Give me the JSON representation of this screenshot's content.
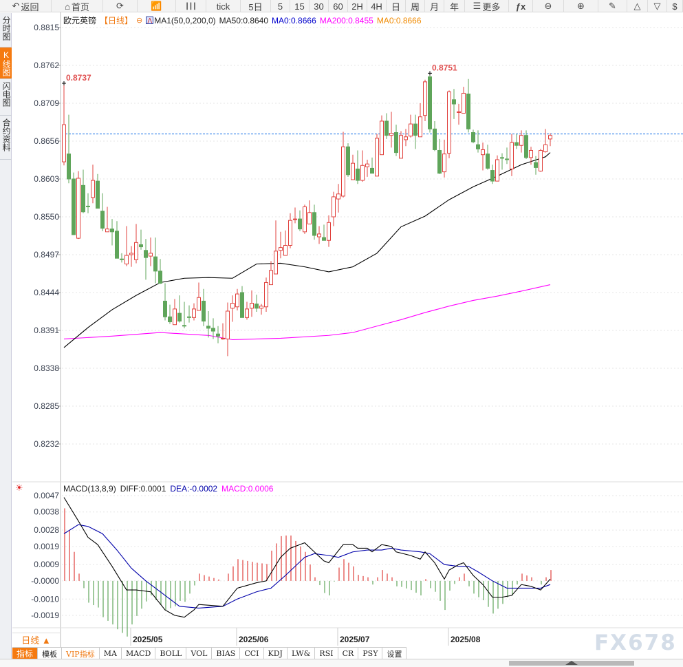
{
  "toolbar": {
    "items": [
      {
        "label": "返回",
        "icon": "back-arrow-icon"
      },
      {
        "label": "首页",
        "icon": "home-icon"
      },
      {
        "label": "",
        "icon": "refresh-icon"
      },
      {
        "label": "",
        "icon": "indicator-chart-icon"
      },
      {
        "label": "",
        "icon": "candlestick-icon"
      },
      {
        "label": "tick"
      },
      {
        "label": "5日"
      },
      {
        "label": "5"
      },
      {
        "label": "15"
      },
      {
        "label": "30"
      },
      {
        "label": "60"
      },
      {
        "label": "2H"
      },
      {
        "label": "4H"
      },
      {
        "label": "日"
      },
      {
        "label": "周"
      },
      {
        "label": "月"
      },
      {
        "label": "年"
      },
      {
        "label": "更多",
        "icon": "menu-icon"
      },
      {
        "label": "",
        "icon": "fx-icon"
      },
      {
        "label": "",
        "icon": "zoom-out-icon"
      },
      {
        "label": "",
        "icon": "zoom-in-icon"
      },
      {
        "label": "",
        "icon": "pen-icon"
      },
      {
        "label": "",
        "icon": "triangle-up-icon"
      },
      {
        "label": "",
        "icon": "triangle-down-icon"
      },
      {
        "label": "",
        "icon": "dollar-icon"
      }
    ]
  },
  "sidebar": {
    "items": [
      {
        "label": "分时图"
      },
      {
        "label": "K线图",
        "active": true
      },
      {
        "label": "闪电图"
      },
      {
        "label": "合约资料"
      }
    ]
  },
  "legend": {
    "symbol": "欧元英镑",
    "period": "【日线】",
    "ma_name": "MA1(50,0,200,0)",
    "ma50": "MA50:0.8640",
    "ma0a": "MA0:0.8666",
    "ma200": "MA200:0.8455",
    "ma0b": "MA0:0.8666"
  },
  "macd_legend": {
    "name": "MACD(13,8,9)",
    "diff": "DIFF:0.0001",
    "dea": "DEA:-0.0002",
    "macd": "MACD:0.0006"
  },
  "period_box": "日线 ▲",
  "tabs": [
    {
      "label": "指标",
      "active": true
    },
    {
      "label": "模板"
    },
    {
      "label": "VIP指标",
      "vip": true
    },
    {
      "label": "MA"
    },
    {
      "label": "MACD"
    },
    {
      "label": "BOLL"
    },
    {
      "label": "VOL"
    },
    {
      "label": "BIAS"
    },
    {
      "label": "CCI"
    },
    {
      "label": "KDJ"
    },
    {
      "label": "LW&"
    },
    {
      "label": "RSI"
    },
    {
      "label": "CR"
    },
    {
      "label": "PSY"
    },
    {
      "label": "设置"
    }
  ],
  "watermark": "FX678",
  "colors": {
    "up": "#e0403c",
    "down": "#5fa55a",
    "ma50": "#000000",
    "ma200": "#ff00ff",
    "dea": "#0000aa",
    "diff": "#000000",
    "last_price_line": "#1a73e8",
    "accent": "#f57a10"
  },
  "chart_data": [
    {
      "type": "candlestick",
      "ylim": [
        0.8232,
        0.8815
      ],
      "yticks": [
        "0.8815",
        "0.8762",
        "0.8709",
        "0.8656",
        "0.8603",
        "0.8550",
        "0.8497",
        "0.8444",
        "0.8391",
        "0.8338",
        "0.8285",
        "0.8232"
      ],
      "month_labels": [
        {
          "label": "2025/05",
          "index": 14
        },
        {
          "label": "2025/06",
          "index": 36
        },
        {
          "label": "2025/07",
          "index": 57
        },
        {
          "label": "2025/08",
          "index": 80
        }
      ],
      "last_price": 0.8666,
      "annotations": [
        {
          "label": "0.8737",
          "index": 0,
          "value": 0.8737
        },
        {
          "label": "0.8751",
          "index": 76,
          "value": 0.8751
        }
      ],
      "ohlc": [
        [
          0.8627,
          0.8737,
          0.8622,
          0.8679
        ],
        [
          0.8638,
          0.8693,
          0.8597,
          0.8603
        ],
        [
          0.8603,
          0.8612,
          0.8525,
          0.8525
        ],
        [
          0.852,
          0.8614,
          0.8519,
          0.8604
        ],
        [
          0.8594,
          0.8616,
          0.8555,
          0.8557
        ],
        [
          0.8565,
          0.8583,
          0.8555,
          0.8564
        ],
        [
          0.8577,
          0.8623,
          0.8569,
          0.8601
        ],
        [
          0.86,
          0.861,
          0.8562,
          0.8562
        ],
        [
          0.8558,
          0.8583,
          0.853,
          0.8534
        ],
        [
          0.8529,
          0.8564,
          0.8529,
          0.8533
        ],
        [
          0.8533,
          0.8547,
          0.851,
          0.8529
        ],
        [
          0.853,
          0.8544,
          0.8492,
          0.8492
        ],
        [
          0.8491,
          0.8499,
          0.8486,
          0.849
        ],
        [
          0.8484,
          0.8537,
          0.8481,
          0.8496
        ],
        [
          0.8497,
          0.8509,
          0.848,
          0.8499
        ],
        [
          0.849,
          0.854,
          0.8485,
          0.8514
        ],
        [
          0.8511,
          0.8532,
          0.8504,
          0.8508
        ],
        [
          0.8503,
          0.8519,
          0.8462,
          0.8493
        ],
        [
          0.8495,
          0.8521,
          0.8481,
          0.8499
        ],
        [
          0.8494,
          0.8521,
          0.8457,
          0.8474
        ],
        [
          0.8474,
          0.8491,
          0.8456,
          0.8457
        ],
        [
          0.8432,
          0.8457,
          0.8405,
          0.841
        ],
        [
          0.841,
          0.8427,
          0.84,
          0.8403
        ],
        [
          0.8399,
          0.8435,
          0.8399,
          0.8421
        ],
        [
          0.8415,
          0.844,
          0.8402,
          0.8404
        ],
        [
          0.8398,
          0.8431,
          0.8394,
          0.8397
        ],
        [
          0.841,
          0.8426,
          0.8402,
          0.8409
        ],
        [
          0.8409,
          0.8429,
          0.8405,
          0.8421
        ],
        [
          0.8419,
          0.8458,
          0.8419,
          0.8437
        ],
        [
          0.8432,
          0.8449,
          0.8397,
          0.8404
        ],
        [
          0.8397,
          0.8418,
          0.8381,
          0.8394
        ],
        [
          0.8394,
          0.8408,
          0.8379,
          0.839
        ],
        [
          0.8386,
          0.8397,
          0.8373,
          0.8383
        ],
        [
          0.8379,
          0.8401,
          0.8378,
          0.838
        ],
        [
          0.8379,
          0.843,
          0.8355,
          0.8418
        ],
        [
          0.8422,
          0.844,
          0.8403,
          0.8429
        ],
        [
          0.8424,
          0.8449,
          0.8419,
          0.8442
        ],
        [
          0.8444,
          0.8453,
          0.8409,
          0.8409
        ],
        [
          0.8409,
          0.8431,
          0.8406,
          0.8421
        ],
        [
          0.8422,
          0.8447,
          0.841,
          0.8429
        ],
        [
          0.8428,
          0.8441,
          0.8417,
          0.8422
        ],
        [
          0.8422,
          0.8428,
          0.8413,
          0.8425
        ],
        [
          0.8424,
          0.8465,
          0.8417,
          0.8458
        ],
        [
          0.8455,
          0.8488,
          0.8455,
          0.8475
        ],
        [
          0.847,
          0.8545,
          0.847,
          0.8502
        ],
        [
          0.8503,
          0.8529,
          0.8492,
          0.8507
        ],
        [
          0.8496,
          0.8531,
          0.8496,
          0.851
        ],
        [
          0.851,
          0.8555,
          0.8506,
          0.8545
        ],
        [
          0.8546,
          0.8563,
          0.8541,
          0.8547
        ],
        [
          0.8547,
          0.8559,
          0.853,
          0.8533
        ],
        [
          0.8529,
          0.8567,
          0.8526,
          0.8564
        ],
        [
          0.854,
          0.8573,
          0.854,
          0.8556
        ],
        [
          0.8556,
          0.8567,
          0.8518,
          0.8524
        ],
        [
          0.8522,
          0.8537,
          0.8512,
          0.8526
        ],
        [
          0.8521,
          0.8539,
          0.8517,
          0.8517
        ],
        [
          0.8517,
          0.8552,
          0.8508,
          0.8542
        ],
        [
          0.855,
          0.8585,
          0.8537,
          0.8578
        ],
        [
          0.8575,
          0.8596,
          0.8556,
          0.8582
        ],
        [
          0.8579,
          0.8669,
          0.8577,
          0.8648
        ],
        [
          0.8648,
          0.8653,
          0.8606,
          0.8609
        ],
        [
          0.8602,
          0.8637,
          0.8602,
          0.8625
        ],
        [
          0.8617,
          0.8643,
          0.8596,
          0.8601
        ],
        [
          0.8601,
          0.8643,
          0.8599,
          0.8622
        ],
        [
          0.862,
          0.863,
          0.8606,
          0.8624
        ],
        [
          0.8618,
          0.8633,
          0.8611,
          0.8611
        ],
        [
          0.8607,
          0.8666,
          0.8607,
          0.866
        ],
        [
          0.8637,
          0.8692,
          0.8637,
          0.8684
        ],
        [
          0.8684,
          0.8695,
          0.8659,
          0.8664
        ],
        [
          0.8664,
          0.8697,
          0.8647,
          0.8667
        ],
        [
          0.8668,
          0.8679,
          0.8635,
          0.864
        ],
        [
          0.8632,
          0.867,
          0.8632,
          0.8664
        ],
        [
          0.8658,
          0.8673,
          0.8649,
          0.8662
        ],
        [
          0.8663,
          0.8693,
          0.8661,
          0.868
        ],
        [
          0.868,
          0.8693,
          0.8645,
          0.8664
        ],
        [
          0.8662,
          0.8709,
          0.8662,
          0.869
        ],
        [
          0.8692,
          0.8742,
          0.8684,
          0.8739
        ],
        [
          0.8746,
          0.8751,
          0.8668,
          0.8673
        ],
        [
          0.8673,
          0.8684,
          0.8642,
          0.8644
        ],
        [
          0.8643,
          0.8659,
          0.861,
          0.8611
        ],
        [
          0.8613,
          0.8658,
          0.8605,
          0.8638
        ],
        [
          0.8639,
          0.8727,
          0.8632,
          0.8725
        ],
        [
          0.8714,
          0.8729,
          0.8687,
          0.8708
        ],
        [
          0.8697,
          0.8708,
          0.8679,
          0.8697
        ],
        [
          0.8695,
          0.8732,
          0.8695,
          0.8723
        ],
        [
          0.8722,
          0.8743,
          0.8668,
          0.8673
        ],
        [
          0.8668,
          0.8672,
          0.8653,
          0.8655
        ],
        [
          0.8651,
          0.8671,
          0.864,
          0.8645
        ],
        [
          0.8637,
          0.8654,
          0.8615,
          0.8644
        ],
        [
          0.8638,
          0.8651,
          0.8616,
          0.8618
        ],
        [
          0.8615,
          0.8623,
          0.8596,
          0.86
        ],
        [
          0.86,
          0.8636,
          0.86,
          0.863
        ],
        [
          0.8633,
          0.8639,
          0.8616,
          0.8632
        ],
        [
          0.8631,
          0.8647,
          0.8624,
          0.863
        ],
        [
          0.8617,
          0.8666,
          0.8607,
          0.8654
        ],
        [
          0.8654,
          0.8666,
          0.8645,
          0.865
        ],
        [
          0.865,
          0.8671,
          0.864,
          0.8664
        ],
        [
          0.8664,
          0.8671,
          0.8631,
          0.8633
        ],
        [
          0.8633,
          0.8648,
          0.8623,
          0.8643
        ],
        [
          0.8626,
          0.8635,
          0.8609,
          0.8619
        ],
        [
          0.8614,
          0.8645,
          0.8613,
          0.8643
        ],
        [
          0.8641,
          0.8673,
          0.864,
          0.8651
        ],
        [
          0.8659,
          0.8667,
          0.8649,
          0.8664
        ]
      ],
      "ma50": [
        [
          0,
          0.8367
        ],
        [
          5,
          0.8395
        ],
        [
          10,
          0.842
        ],
        [
          15,
          0.844
        ],
        [
          20,
          0.8458
        ],
        [
          25,
          0.8464
        ],
        [
          30,
          0.8465
        ],
        [
          35,
          0.8464
        ],
        [
          40,
          0.8484
        ],
        [
          45,
          0.8485
        ],
        [
          50,
          0.848
        ],
        [
          55,
          0.8473
        ],
        [
          60,
          0.848
        ],
        [
          65,
          0.8499
        ],
        [
          70,
          0.8536
        ],
        [
          75,
          0.8551
        ],
        [
          80,
          0.8574
        ],
        [
          85,
          0.8592
        ],
        [
          90,
          0.8607
        ],
        [
          95,
          0.8623
        ],
        [
          100,
          0.8634
        ],
        [
          101,
          0.864
        ]
      ],
      "ma200": [
        [
          0,
          0.8379
        ],
        [
          10,
          0.8383
        ],
        [
          20,
          0.8388
        ],
        [
          30,
          0.8384
        ],
        [
          35,
          0.8378
        ],
        [
          45,
          0.838
        ],
        [
          55,
          0.8384
        ],
        [
          60,
          0.8388
        ],
        [
          65,
          0.8397
        ],
        [
          70,
          0.8406
        ],
        [
          75,
          0.8416
        ],
        [
          80,
          0.8425
        ],
        [
          85,
          0.8433
        ],
        [
          90,
          0.8439
        ],
        [
          95,
          0.8446
        ],
        [
          101,
          0.8455
        ]
      ]
    },
    {
      "type": "line",
      "title": "MACD(13,8,9)",
      "ylim": [
        -0.0019,
        0.0047
      ],
      "yticks": [
        "0.0047",
        "0.0038",
        "0.0028",
        "0.0019",
        "0.0009",
        "-0.0000",
        "-0.0010",
        "-0.0019"
      ],
      "diff": [
        [
          0,
          0.0046
        ],
        [
          3,
          0.0033
        ],
        [
          5,
          0.0024
        ],
        [
          7,
          0.002
        ],
        [
          10,
          0.0008
        ],
        [
          13,
          -0.0005
        ],
        [
          15,
          -0.0005
        ],
        [
          18,
          -0.0006
        ],
        [
          21,
          -0.0016
        ],
        [
          23,
          -0.0019
        ],
        [
          25,
          -0.002
        ],
        [
          27,
          -0.0016
        ],
        [
          28,
          -0.0013
        ],
        [
          33,
          -0.0014
        ],
        [
          36,
          -0.0004
        ],
        [
          40,
          -0.0001
        ],
        [
          42,
          0.0
        ],
        [
          45,
          0.0013
        ],
        [
          47,
          0.0018
        ],
        [
          50,
          0.0021
        ],
        [
          52,
          0.0016
        ],
        [
          54,
          0.0011
        ],
        [
          55,
          0.001
        ],
        [
          58,
          0.002
        ],
        [
          60,
          0.002
        ],
        [
          61,
          0.0018
        ],
        [
          63,
          0.0018
        ],
        [
          64,
          0.0016
        ],
        [
          66,
          0.002
        ],
        [
          68,
          0.0019
        ],
        [
          69,
          0.0016
        ],
        [
          72,
          0.0014
        ],
        [
          74,
          0.0012
        ],
        [
          75,
          0.0016
        ],
        [
          77,
          0.001
        ],
        [
          79,
          0.0001
        ],
        [
          80,
          0.0006
        ],
        [
          82,
          0.0009
        ],
        [
          83,
          0.001
        ],
        [
          85,
          0.0003
        ],
        [
          87,
          -0.0002
        ],
        [
          89,
          -0.0009
        ],
        [
          91,
          -0.0009
        ],
        [
          93,
          -0.0008
        ],
        [
          95,
          -0.0002
        ],
        [
          97,
          -0.0003
        ],
        [
          99,
          -0.0005
        ],
        [
          101,
          0.0001
        ]
      ],
      "dea": [
        [
          0,
          0.0026
        ],
        [
          3,
          0.0031
        ],
        [
          5,
          0.003
        ],
        [
          8,
          0.0026
        ],
        [
          11,
          0.0017
        ],
        [
          14,
          0.0007
        ],
        [
          17,
          0.0
        ],
        [
          20,
          -0.0006
        ],
        [
          24,
          -0.0014
        ],
        [
          28,
          -0.0015
        ],
        [
          33,
          -0.0014
        ],
        [
          36,
          -0.001
        ],
        [
          40,
          -0.0006
        ],
        [
          43,
          -0.0004
        ],
        [
          46,
          0.0003
        ],
        [
          50,
          0.0013
        ],
        [
          52,
          0.0015
        ],
        [
          55,
          0.0014
        ],
        [
          57,
          0.0013
        ],
        [
          60,
          0.0016
        ],
        [
          63,
          0.0017
        ],
        [
          66,
          0.0017
        ],
        [
          68,
          0.0018
        ],
        [
          70,
          0.0017
        ],
        [
          74,
          0.0016
        ],
        [
          76,
          0.0015
        ],
        [
          79,
          0.0009
        ],
        [
          82,
          0.0008
        ],
        [
          84,
          0.0008
        ],
        [
          86,
          0.0005
        ],
        [
          89,
          0.0
        ],
        [
          92,
          -0.0004
        ],
        [
          95,
          -0.0004
        ],
        [
          99,
          -0.0004
        ],
        [
          101,
          -0.0002
        ]
      ]
    }
  ]
}
